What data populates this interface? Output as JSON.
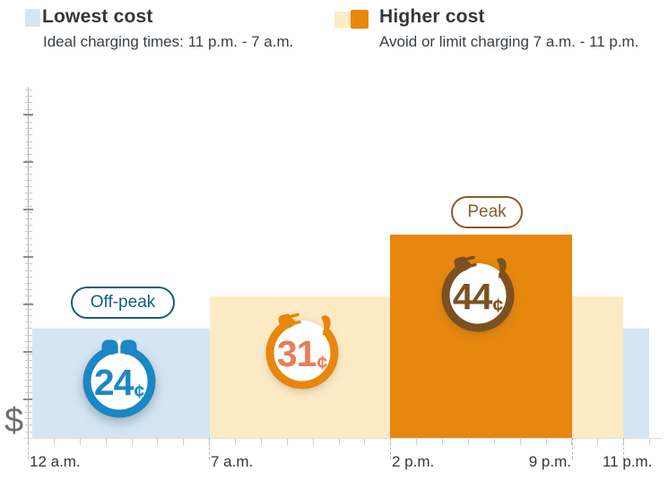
{
  "legend": {
    "lowest": {
      "title": "Lowest cost",
      "subtitle": "Ideal charging times: 11 p.m. - 7 a.m."
    },
    "higher": {
      "title": "Higher cost",
      "subtitle": "Avoid or limit charging 7 a.m. - 11 p.m."
    }
  },
  "labels": {
    "off_peak": "Off-peak",
    "peak": "Peak",
    "currency_symbol": "$",
    "cent_symbol": "¢"
  },
  "x_axis": [
    "12 a.m.",
    "7 a.m.",
    "2 p.m.",
    "9 p.m.",
    "11 p.m."
  ],
  "rates": {
    "off_peak": "24",
    "mid": "31",
    "peak": "44"
  },
  "colors": {
    "lowest_fill": "#D4E6F4",
    "mid_fill": "#FDEBC6",
    "peak_fill": "#E8870E",
    "blue_accent": "#1B87C5",
    "offpeak_pill": "#175C82",
    "mid_ring": "#E8860D",
    "mid_value_text": "#E97D55",
    "peak_accent": "#7B5120",
    "peak_pill": "#8A5B2B"
  },
  "chart_data": {
    "type": "bar",
    "title": "",
    "ylabel": "$",
    "xlabel": "",
    "x_tick_labels": [
      "12 a.m.",
      "7 a.m.",
      "2 p.m.",
      "9 p.m.",
      "11 p.m."
    ],
    "unit": "cents",
    "legend_position": "top",
    "grid": false,
    "segments": [
      {
        "period": "12 a.m. - 7 a.m.",
        "rate_cents": 24,
        "tier": "lowest",
        "label": "Off-peak"
      },
      {
        "period": "7 a.m. - 2 p.m.",
        "rate_cents": 31,
        "tier": "higher",
        "label": ""
      },
      {
        "period": "2 p.m. - 9 p.m.",
        "rate_cents": 44,
        "tier": "higher",
        "label": "Peak"
      },
      {
        "period": "9 p.m. - 11 p.m.",
        "rate_cents": 31,
        "tier": "higher",
        "label": ""
      },
      {
        "period": "11 p.m. - 12 a.m.",
        "rate_cents": 24,
        "tier": "lowest",
        "label": ""
      }
    ]
  }
}
